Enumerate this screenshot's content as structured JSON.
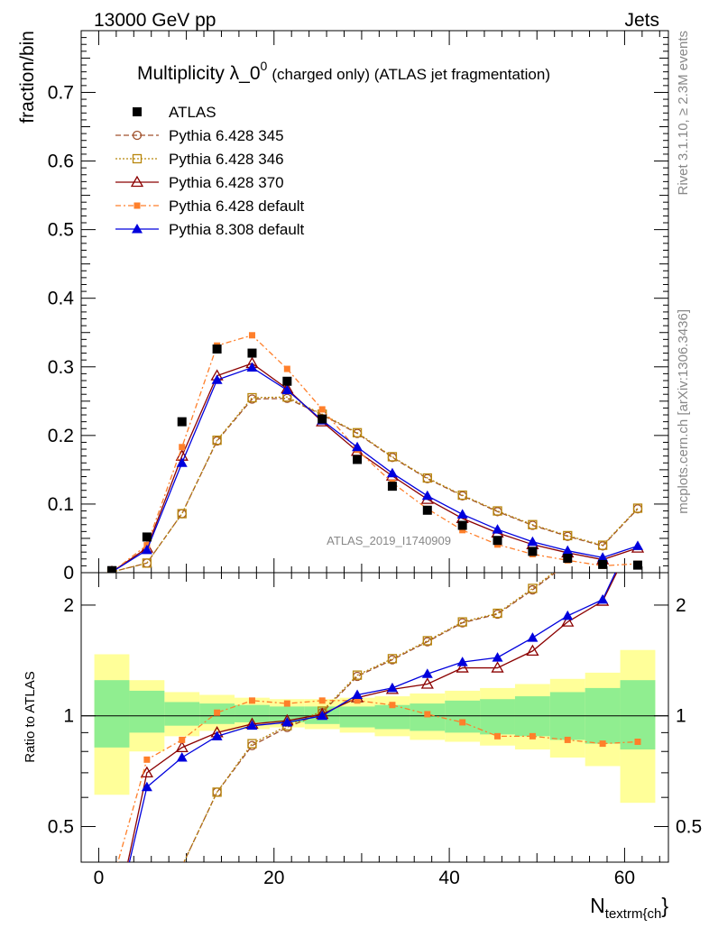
{
  "chart_data": {
    "type": "scatter",
    "header_left": "13000 GeV pp",
    "header_right": "Jets",
    "title_main": "Multiplicity λ_0",
    "title_sup": "0",
    "title_suffix": "(charged only) (ATLAS jet fragmentation)",
    "ylabel_top": "fraction/bin",
    "ylabel_bottom": "Ratio to ATLAS",
    "xlabel_main": "N",
    "xlabel_sub": "textrm{ch",
    "xlabel_tail": "}",
    "side_label_top": "Rivet 3.1.10, ≥ 2.3M events",
    "side_label_bottom": "mcplots.cern.ch [arXiv:1306.3436]",
    "watermark": "ATLAS_2019_I1740909",
    "xlim": [
      -2,
      65
    ],
    "ylim_top": [
      0,
      0.79
    ],
    "ylim_bottom": [
      0.4,
      2.45
    ],
    "x_ticks": [
      "0",
      "20",
      "40",
      "60"
    ],
    "y_ticks_top": [
      "0",
      "0.1",
      "0.2",
      "0.3",
      "0.4",
      "0.5",
      "0.6",
      "0.7"
    ],
    "y_ticks_bottom": [
      "0.5",
      "1",
      "2"
    ],
    "x": [
      1.5,
      5.5,
      9.5,
      13.5,
      17.5,
      21.5,
      25.5,
      29.5,
      33.5,
      37.5,
      41.5,
      45.5,
      49.5,
      53.5,
      57.5,
      61.5
    ],
    "bin_edges": [
      -0.5,
      3.5,
      7.5,
      11.5,
      15.5,
      19.5,
      23.5,
      27.5,
      31.5,
      35.5,
      39.5,
      43.5,
      47.5,
      51.5,
      55.5,
      59.5,
      63.5
    ],
    "band_inner": [
      [
        0.82,
        1.25
      ],
      [
        0.9,
        1.17
      ],
      [
        0.94,
        1.09
      ],
      [
        0.95,
        1.08
      ],
      [
        0.96,
        1.07
      ],
      [
        0.96,
        1.06
      ],
      [
        0.95,
        1.06
      ],
      [
        0.93,
        1.06
      ],
      [
        0.92,
        1.07
      ],
      [
        0.91,
        1.08
      ],
      [
        0.9,
        1.1
      ],
      [
        0.89,
        1.11
      ],
      [
        0.88,
        1.13
      ],
      [
        0.86,
        1.16
      ],
      [
        0.84,
        1.19
      ],
      [
        0.81,
        1.25
      ]
    ],
    "band_outer": [
      [
        0.61,
        1.47
      ],
      [
        0.8,
        1.25
      ],
      [
        0.88,
        1.16
      ],
      [
        0.91,
        1.14
      ],
      [
        0.92,
        1.12
      ],
      [
        0.93,
        1.11
      ],
      [
        0.92,
        1.11
      ],
      [
        0.9,
        1.12
      ],
      [
        0.88,
        1.13
      ],
      [
        0.86,
        1.15
      ],
      [
        0.85,
        1.17
      ],
      [
        0.83,
        1.19
      ],
      [
        0.81,
        1.22
      ],
      [
        0.77,
        1.26
      ],
      [
        0.73,
        1.31
      ],
      [
        0.58,
        1.51
      ]
    ],
    "series": [
      {
        "name": "ATLAS",
        "color": "#000000",
        "marker": "square-filled",
        "dash": "none",
        "values": [
          0.003,
          0.052,
          0.22,
          0.326,
          0.32,
          0.279,
          0.224,
          0.165,
          0.126,
          0.091,
          0.069,
          0.047,
          0.031,
          0.021,
          0.012,
          0.011
        ],
        "ratio": []
      },
      {
        "name": "Pythia 6.428 345",
        "color": "#a0522d",
        "marker": "circle-open",
        "dash": "6,3",
        "values": [
          0.001,
          0.014,
          0.086,
          0.192,
          0.253,
          0.254,
          0.23,
          0.203,
          0.168,
          0.137,
          0.112,
          0.089,
          0.069,
          0.053,
          0.039,
          0.093
        ],
        "ratio": [
          0.2,
          0.27,
          0.39,
          0.62,
          0.83,
          0.93,
          1.02,
          1.28,
          1.42,
          1.59,
          1.79,
          1.89,
          2.2,
          2.6,
          3.0,
          3.4
        ]
      },
      {
        "name": "Pythia 6.428 346",
        "color": "#b8860b",
        "marker": "square-open",
        "dash": "2,2",
        "values": [
          0.001,
          0.014,
          0.086,
          0.193,
          0.255,
          0.256,
          0.231,
          0.204,
          0.169,
          0.138,
          0.113,
          0.09,
          0.07,
          0.054,
          0.04,
          0.094
        ],
        "ratio": [
          0.2,
          0.27,
          0.39,
          0.62,
          0.84,
          0.94,
          1.03,
          1.29,
          1.43,
          1.6,
          1.8,
          1.9,
          2.22,
          2.62,
          3.0,
          3.4
        ]
      },
      {
        "name": "Pythia 6.428 370",
        "color": "#8b0000",
        "marker": "triangle-open",
        "dash": "none",
        "values": [
          0.001,
          0.036,
          0.17,
          0.287,
          0.305,
          0.268,
          0.22,
          0.177,
          0.141,
          0.107,
          0.079,
          0.058,
          0.041,
          0.029,
          0.019,
          0.036
        ],
        "ratio": [
          0.25,
          0.7,
          0.82,
          0.9,
          0.95,
          0.97,
          1.01,
          1.12,
          1.18,
          1.22,
          1.35,
          1.35,
          1.5,
          1.8,
          2.05,
          3.2
        ]
      },
      {
        "name": "Pythia 6.428 default",
        "color": "#ff7f2a",
        "marker": "square-filled-small",
        "dash": "6,3,2,3",
        "values": [
          0.001,
          0.04,
          0.183,
          0.331,
          0.346,
          0.297,
          0.238,
          0.179,
          0.131,
          0.093,
          0.062,
          0.041,
          0.027,
          0.018,
          0.01,
          0.013
        ],
        "ratio": [
          0.35,
          0.76,
          0.86,
          1.02,
          1.1,
          1.08,
          1.1,
          1.1,
          1.07,
          1.01,
          0.96,
          0.88,
          0.88,
          0.86,
          0.84,
          0.85
        ]
      },
      {
        "name": "Pythia 8.308 default",
        "color": "#0000dd",
        "marker": "triangle-filled",
        "dash": "none",
        "values": [
          0.001,
          0.033,
          0.16,
          0.281,
          0.299,
          0.266,
          0.222,
          0.183,
          0.145,
          0.112,
          0.085,
          0.063,
          0.045,
          0.032,
          0.022,
          0.039
        ],
        "ratio": [
          0.25,
          0.64,
          0.77,
          0.88,
          0.94,
          0.96,
          1.0,
          1.14,
          1.19,
          1.3,
          1.4,
          1.44,
          1.63,
          1.87,
          2.07,
          3.3
        ]
      }
    ]
  }
}
